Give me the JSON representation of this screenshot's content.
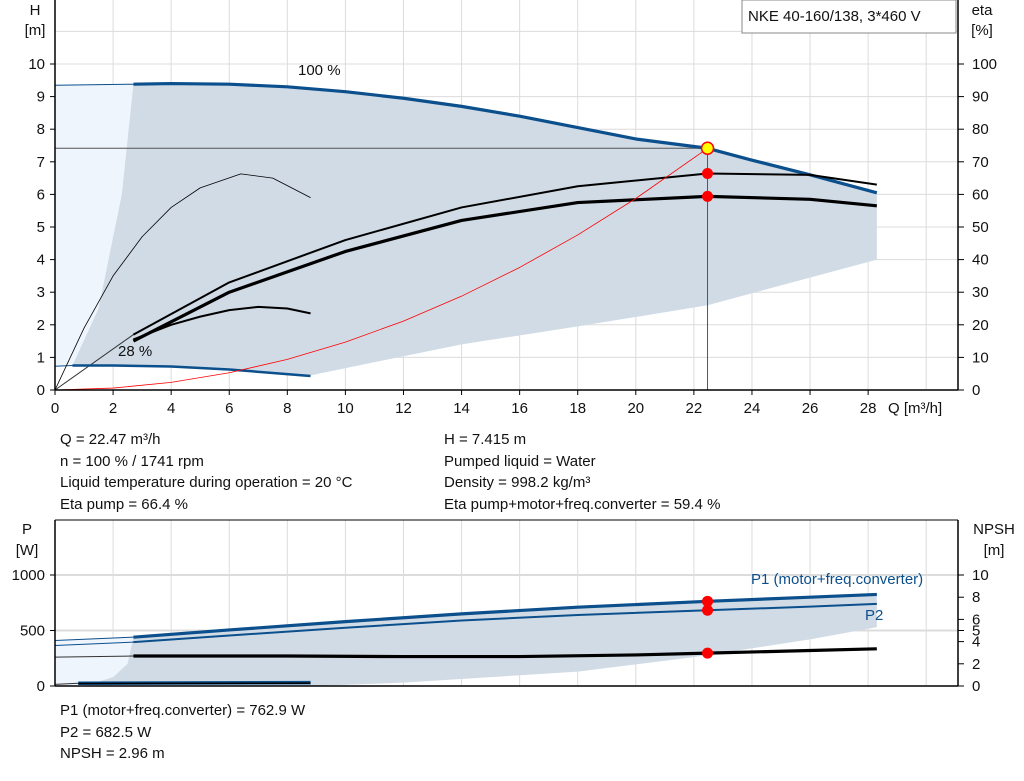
{
  "chart_data": [
    {
      "type": "line",
      "title": "NKE 40-160/138, 3*460 V",
      "xlabel": "Q [m³/h]",
      "ylabel": "H\n[m]",
      "ylabel_right": "eta\n[%]",
      "xlim": [
        0,
        30
      ],
      "ylim": [
        0,
        11.8
      ],
      "ylim_right": [
        0,
        118
      ],
      "xticks": [
        0,
        2,
        4,
        6,
        8,
        10,
        12,
        14,
        16,
        18,
        20,
        22,
        24,
        26,
        28
      ],
      "yticks": [
        0,
        1,
        2,
        3,
        4,
        5,
        6,
        7,
        8,
        9,
        10
      ],
      "yticks_right": [
        0,
        10,
        20,
        30,
        40,
        50,
        60,
        70,
        80,
        90,
        100
      ],
      "grid": true,
      "annotations": [
        "100 %",
        "28 %"
      ],
      "series": [
        {
          "key": "h100",
          "axis": "left",
          "color": "#0b4f8c",
          "x": [
            2.7,
            4,
            6,
            8,
            10,
            12,
            14,
            16,
            18,
            20,
            22.47,
            24,
            26,
            28.3
          ],
          "y": [
            9.38,
            9.4,
            9.38,
            9.3,
            9.15,
            8.95,
            8.7,
            8.4,
            8.05,
            7.7,
            7.415,
            7.05,
            6.6,
            6.05
          ]
        },
        {
          "key": "h28",
          "axis": "left",
          "color": "#0b4f8c",
          "x": [
            0.6,
            2,
            4,
            6,
            8.8
          ],
          "y": [
            0.75,
            0.75,
            0.72,
            0.63,
            0.43
          ]
        },
        {
          "key": "eta_pump",
          "axis": "right",
          "color": "#000000",
          "x": [
            0,
            2.7,
            6,
            10,
            14,
            18,
            22.47,
            26,
            28.3
          ],
          "y": [
            0,
            17,
            33,
            46,
            56,
            62.5,
            66.4,
            66,
            63
          ]
        },
        {
          "key": "eta_total",
          "axis": "right",
          "color": "#000000",
          "x": [
            0,
            2.7,
            6,
            10,
            14,
            18,
            22.47,
            26,
            28.3
          ],
          "y": [
            0,
            15,
            30,
            42.5,
            52,
            57.5,
            59.4,
            58.5,
            56.5
          ]
        },
        {
          "key": "eta_pump_28",
          "axis": "right",
          "color": "#000000",
          "x": [
            0,
            1,
            2,
            3,
            4,
            5,
            6.4,
            7.5,
            8.8
          ],
          "y": [
            0,
            19,
            35,
            47,
            56,
            62,
            66.3,
            65,
            59
          ]
        },
        {
          "key": "eta_total_28",
          "axis": "right",
          "color": "#000000",
          "x": [
            2.7,
            4,
            5,
            6,
            7,
            8,
            8.8
          ],
          "y": [
            15.5,
            20,
            22.5,
            24.5,
            25.5,
            25,
            23.5
          ]
        },
        {
          "key": "system",
          "axis": "left",
          "color": "#ff0000",
          "x": [
            0,
            2,
            4,
            6,
            8,
            10,
            12,
            14,
            16,
            18,
            20,
            22.47
          ],
          "y": [
            0,
            0.059,
            0.235,
            0.529,
            0.94,
            1.468,
            2.114,
            2.878,
            3.759,
            4.757,
            5.874,
            7.415
          ]
        }
      ],
      "operating_point": {
        "q": 22.47,
        "h": 7.415,
        "eta_pump": 66.4,
        "eta_total": 59.4
      }
    },
    {
      "type": "line",
      "ylabel": "P\n[W]",
      "ylabel_right": "NPSH\n[m]",
      "xlim": [
        0,
        30
      ],
      "ylim": [
        0,
        1500
      ],
      "ylim_right": [
        0,
        15
      ],
      "yticks": [
        0,
        500,
        1000
      ],
      "yticks_right": [
        0,
        2,
        4,
        5,
        6,
        8,
        10
      ],
      "grid": true,
      "series": [
        {
          "key": "p1",
          "name": "P1 (motor+freq.converter)",
          "axis": "left",
          "color": "#0b4f8c",
          "x": [
            2.7,
            6,
            10,
            14,
            18,
            22.47,
            26,
            28.3
          ],
          "y": [
            440,
            505,
            580,
            650,
            710,
            762.9,
            800,
            825
          ]
        },
        {
          "key": "p2",
          "name": "P2",
          "axis": "left",
          "color": "#0b4f8c",
          "x": [
            2.7,
            6,
            10,
            14,
            18,
            22.47,
            26,
            28.3
          ],
          "y": [
            395,
            455,
            525,
            590,
            640,
            682.5,
            715,
            740
          ]
        },
        {
          "key": "npsh",
          "axis": "right",
          "color": "#000000",
          "x": [
            2.7,
            8,
            12,
            16,
            20,
            22.47,
            26,
            28.3
          ],
          "y": [
            2.7,
            2.7,
            2.65,
            2.65,
            2.8,
            2.96,
            3.2,
            3.35
          ]
        },
        {
          "key": "p_low",
          "axis": "left",
          "color": "#0b4f8c",
          "x": [
            0.8,
            8.8
          ],
          "y": [
            25,
            30
          ]
        }
      ],
      "operating_point": {
        "q": 22.47,
        "p1": 762.9,
        "p2": 682.5,
        "npsh": 2.96
      }
    }
  ],
  "info_top": {
    "left": [
      "Q = 22.47 m³/h",
      "n = 100 % / 1741 rpm",
      "Liquid temperature during operation = 20 °C",
      "Eta pump = 66.4 %"
    ],
    "right": [
      "H = 7.415 m",
      "Pumped liquid = Water",
      "Density = 998.2 kg/m³",
      "Eta pump+motor+freq.converter = 59.4 %"
    ]
  },
  "info_bottom": [
    "P1 (motor+freq.converter) = 762.9 W",
    "P2 = 682.5 W",
    "NPSH = 2.96 m"
  ],
  "colors": {
    "curve": "#0b4f8c",
    "area": "#d0dbe6",
    "area_light": "#eef5fd",
    "point": "#ff0000",
    "point_highlight": "#ffff00",
    "grid": "#dcdcdc"
  }
}
